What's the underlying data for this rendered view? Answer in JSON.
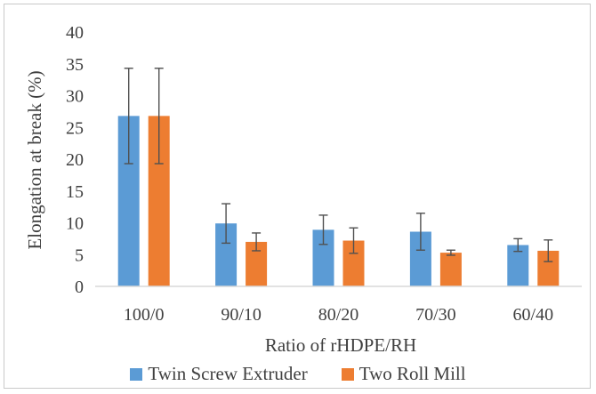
{
  "chart_data": {
    "type": "bar",
    "title": "",
    "xlabel": "Ratio of rHDPE/RH",
    "ylabel": "Elongation at break (%)",
    "ylim": [
      0,
      40
    ],
    "yticks": [
      "0",
      "5",
      "10",
      "15",
      "20",
      "25",
      "30",
      "35",
      "40"
    ],
    "categories": [
      "100/0",
      "90/10",
      "80/20",
      "70/30",
      "60/40"
    ],
    "grid": false,
    "legend_position": "bottom",
    "series": [
      {
        "name": "Twin Screw Extruder",
        "color": "#5b9bd5",
        "values": [
          26.8,
          9.9,
          8.9,
          8.6,
          6.5
        ],
        "error": [
          7.5,
          3.1,
          2.3,
          2.9,
          1.0
        ]
      },
      {
        "name": "Two Roll Mill",
        "color": "#ed7d31",
        "values": [
          26.8,
          7.0,
          7.2,
          5.3,
          5.6
        ],
        "error": [
          7.5,
          1.4,
          2.0,
          0.4,
          1.7
        ]
      }
    ]
  }
}
